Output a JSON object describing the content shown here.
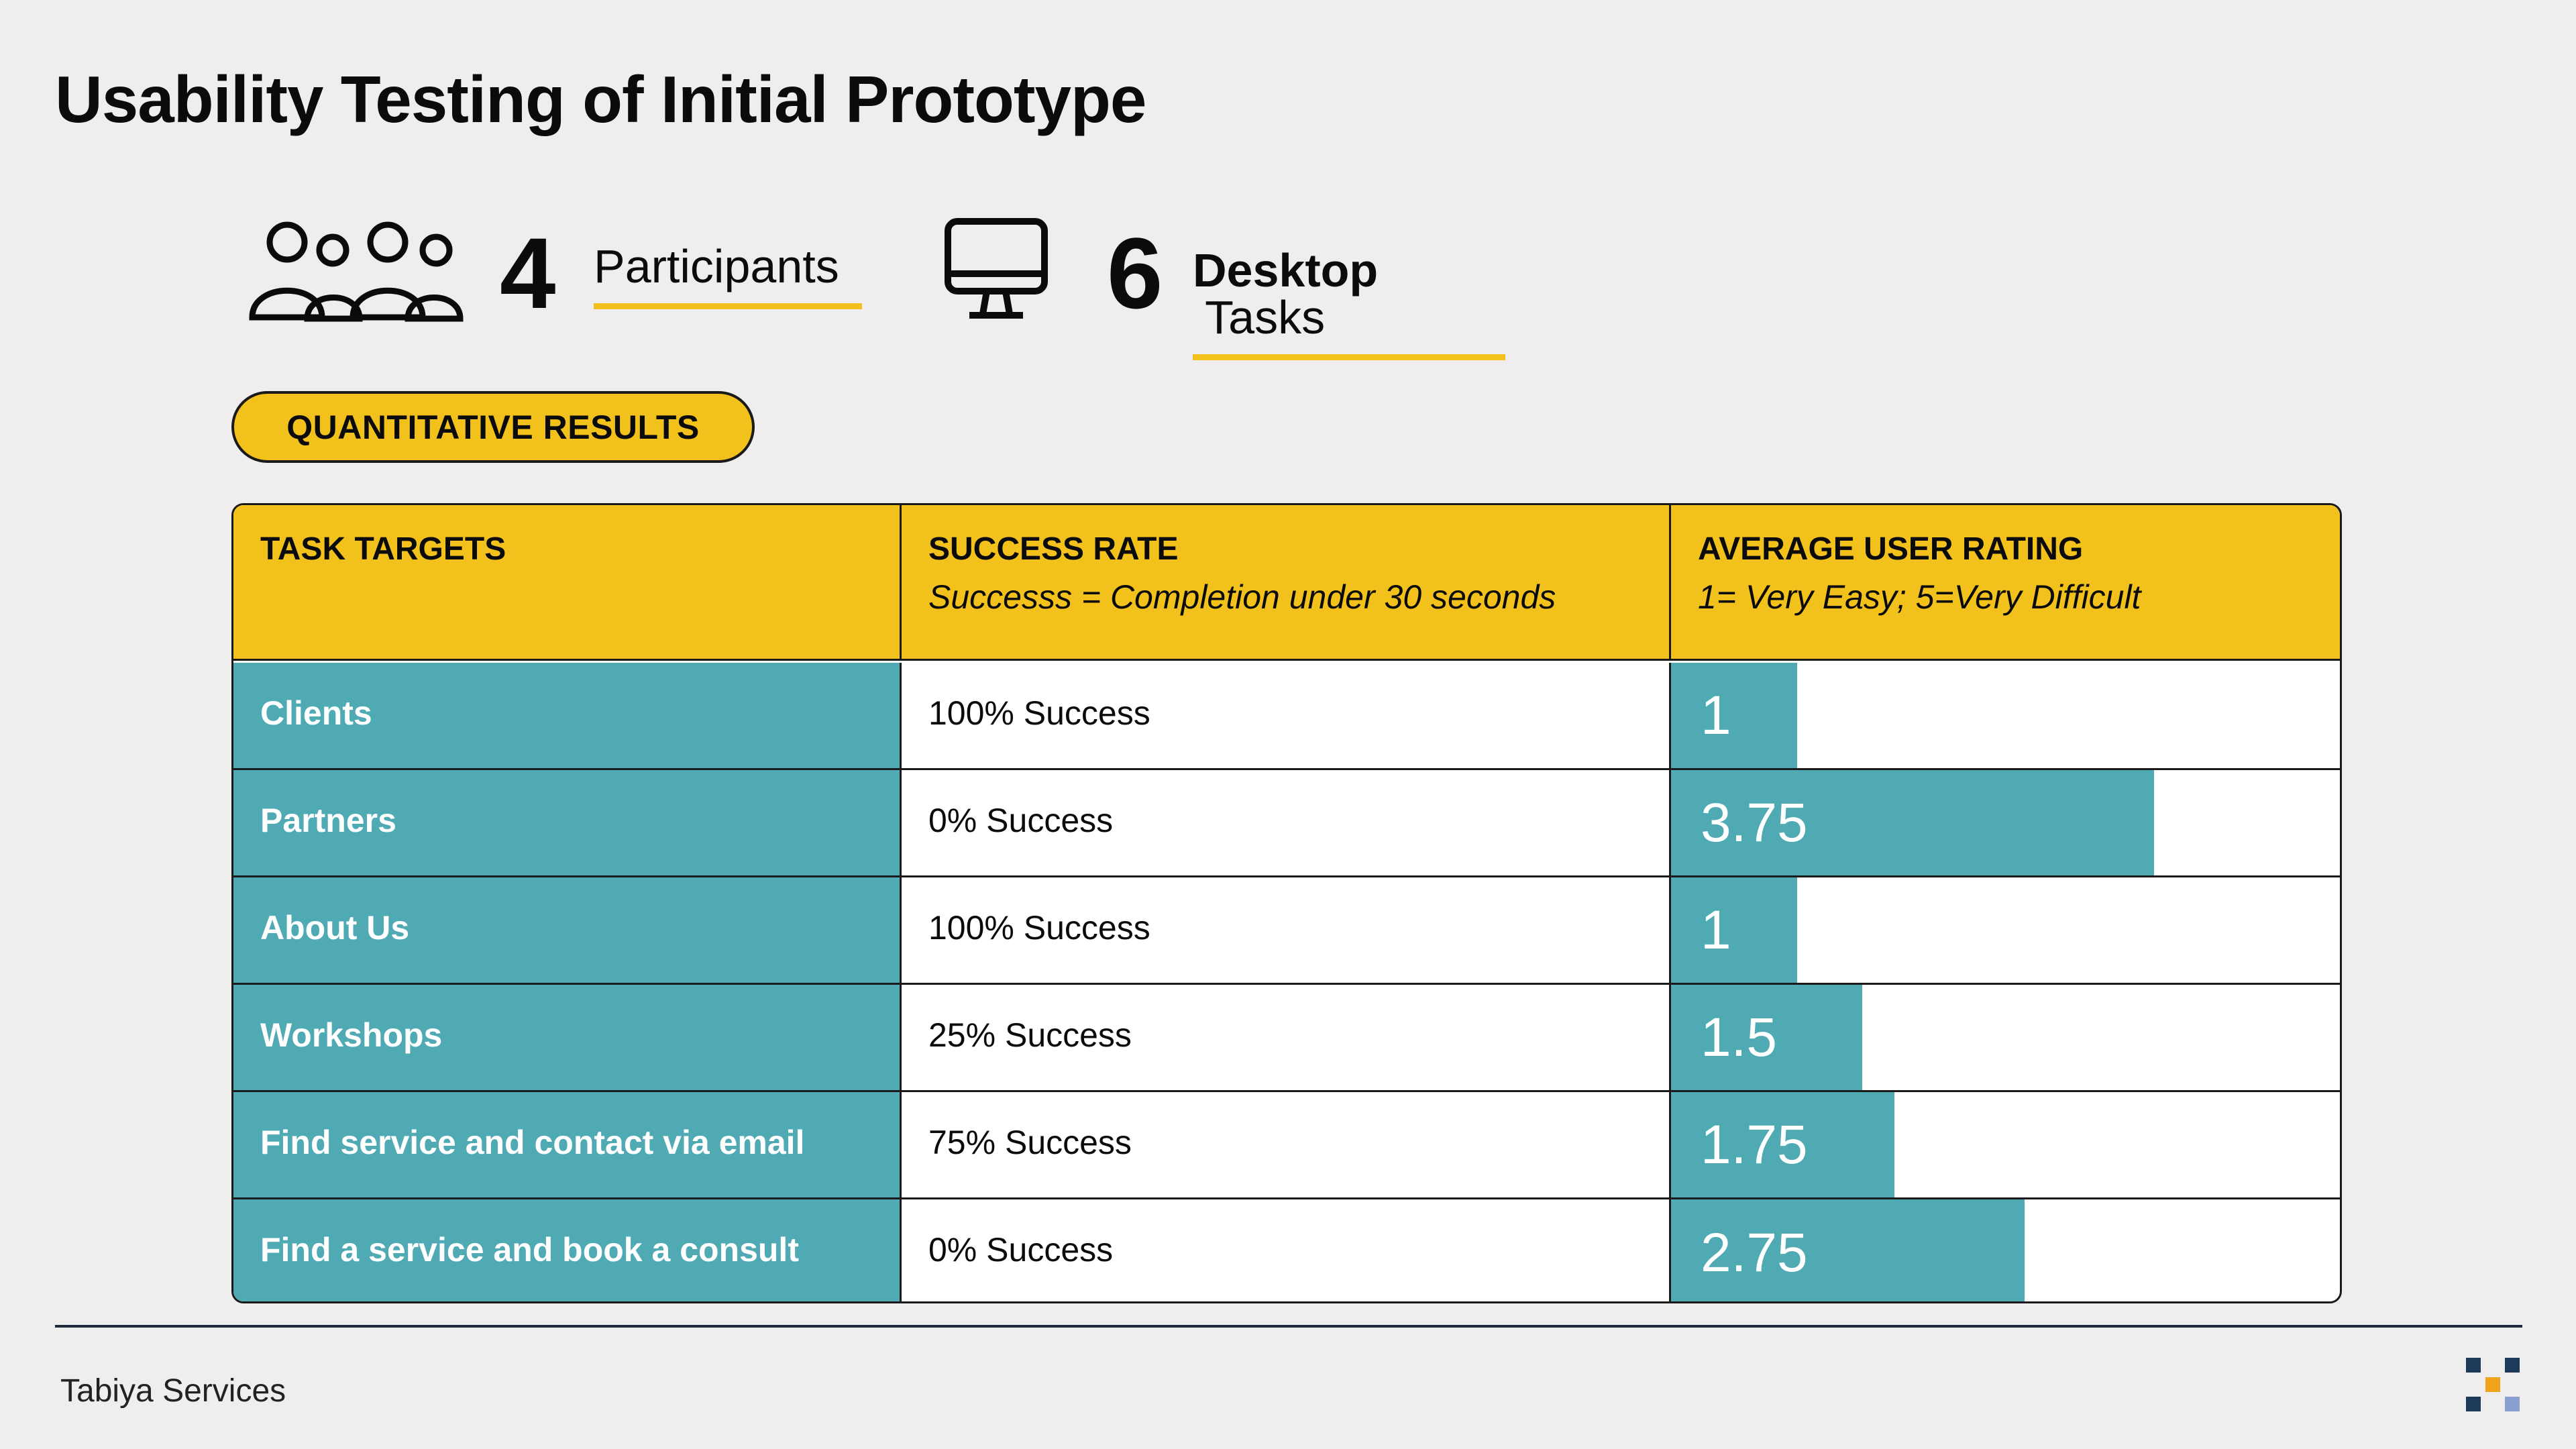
{
  "title": "Usability Testing of Initial Prototype",
  "stats": {
    "participants": {
      "number": "4",
      "label": "Participants",
      "icon": "people-group-icon"
    },
    "tasks": {
      "number": "6",
      "label_bold": "Desktop",
      "label_rest": " Tasks",
      "icon": "desktop-monitor-icon"
    }
  },
  "section_pill": "QUANTITATIVE RESULTS",
  "table": {
    "headers": {
      "task": {
        "title": "TASK TARGETS"
      },
      "success": {
        "title": "SUCCESS RATE",
        "subtitle": "Successs = Completion under 30 seconds"
      },
      "rating": {
        "title": "AVERAGE USER RATING",
        "subtitle": "1= Very Easy; 5=Very Difficult"
      }
    },
    "rows": [
      {
        "task": "Clients",
        "success": "100% Success",
        "rating": 1,
        "rating_label": "1"
      },
      {
        "task": "Partners",
        "success": "0% Success",
        "rating": 3.75,
        "rating_label": "3.75"
      },
      {
        "task": "About Us",
        "success": "100% Success",
        "rating": 1,
        "rating_label": "1"
      },
      {
        "task": "Workshops",
        "success": "25% Success",
        "rating": 1.5,
        "rating_label": "1.5"
      },
      {
        "task": "Find service and contact via email",
        "success": "75% Success",
        "rating": 1.75,
        "rating_label": "1.75"
      },
      {
        "task": "Find a service and book a consult",
        "success": "0% Success",
        "rating": 2.75,
        "rating_label": "2.75"
      }
    ],
    "rating_scale_max": 5
  },
  "footer": {
    "text": "Tabiya Services",
    "logo_icon": "tabiya-logo-icon"
  },
  "colors": {
    "accent_yellow": "#f2c11b",
    "teal": "#4faab4",
    "background": "#efedee"
  }
}
